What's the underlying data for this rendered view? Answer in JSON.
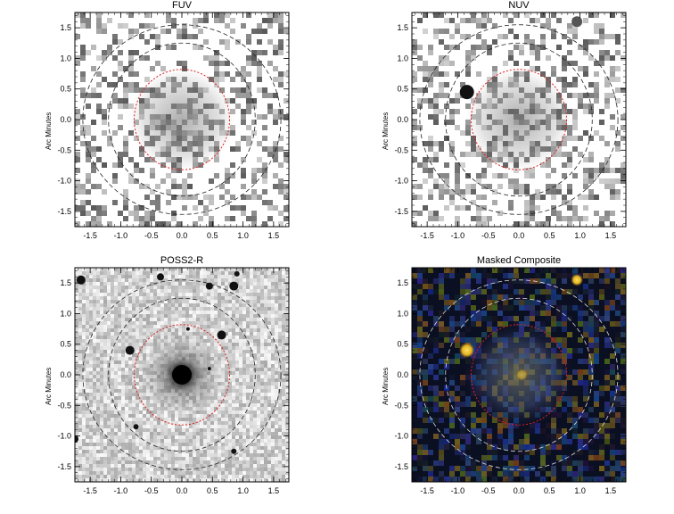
{
  "panels": [
    {
      "title": "FUV",
      "ylabel": "Arc Minutes",
      "style": "gray-noise"
    },
    {
      "title": "NUV",
      "ylabel": "Arc Minutes",
      "style": "gray-noise"
    },
    {
      "title": "POSS2-R",
      "ylabel": "Arc Minutes",
      "style": "optical"
    },
    {
      "title": "Masked Composite",
      "ylabel": "Arc Minutes",
      "style": "composite"
    }
  ],
  "axis": {
    "xticks": [
      "-1.5",
      "-1.0",
      "-0.5",
      "0.0",
      "0.5",
      "1.0",
      "1.5"
    ],
    "yticks": [
      "1.5",
      "1.0",
      "0.5",
      "0.0",
      "-0.5",
      "-1.0",
      "-1.5"
    ],
    "range": [
      -1.75,
      1.75
    ]
  },
  "colors": {
    "red_ellipse": "#e02020",
    "dashed_dark": "#222222",
    "dashed_light": "#dddddd"
  }
}
